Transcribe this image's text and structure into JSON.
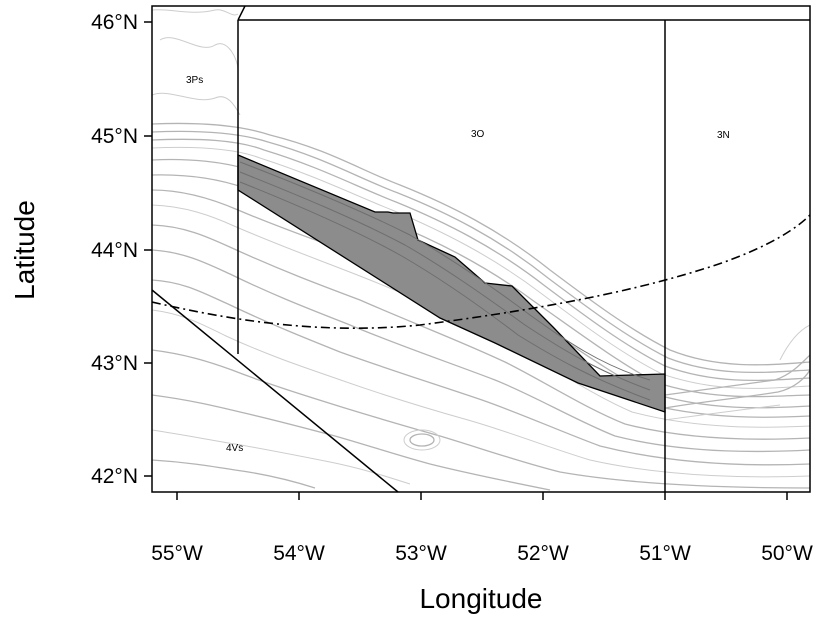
{
  "map": {
    "x_axis_title": "Longitude",
    "y_axis_title": "Latitude",
    "x_ticks": [
      "55°W",
      "54°W",
      "53°W",
      "52°W",
      "51°W",
      "50°W"
    ],
    "y_ticks": [
      "46°N",
      "45°N",
      "44°N",
      "43°N",
      "42°N"
    ],
    "extent": {
      "lon": [
        -55.2,
        -49.8
      ],
      "lat": [
        41.85,
        46.15
      ]
    },
    "zone_labels": [
      "3Ps",
      "3O",
      "3N",
      "4Vs"
    ],
    "colors": {
      "shaded_area": "#8c8c8c",
      "contour_lines": "#b4b4b4",
      "boundary_lines": "#000000"
    }
  }
}
